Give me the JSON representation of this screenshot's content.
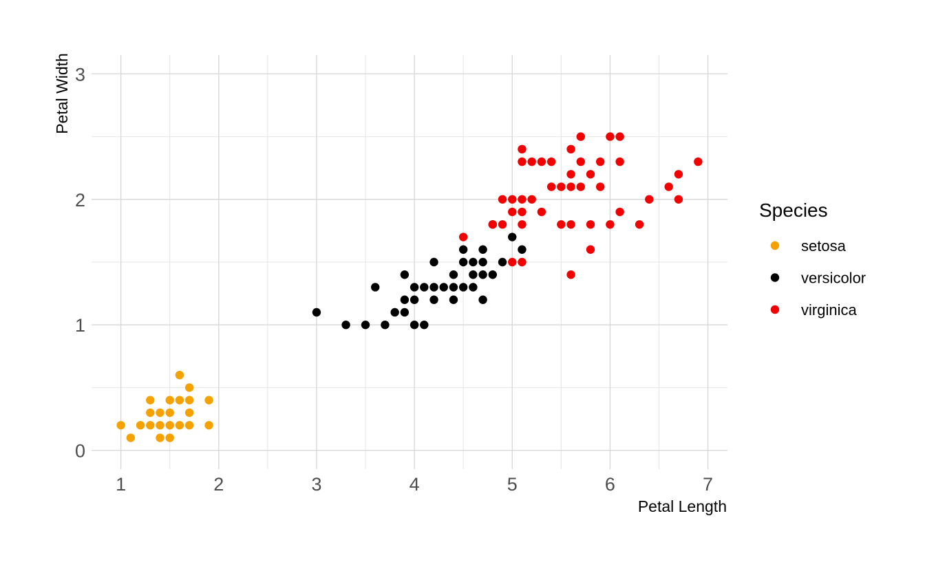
{
  "chart_data": {
    "type": "scatter",
    "xlabel": "Petal Length",
    "ylabel": "Petal Width",
    "xlim": [
      0.7,
      7.2
    ],
    "ylim": [
      -0.15,
      3.15
    ],
    "x_ticks": [
      "1",
      "2",
      "3",
      "4",
      "5",
      "6",
      "7"
    ],
    "y_ticks": [
      "0",
      "1",
      "2",
      "3"
    ],
    "grid": true,
    "legend_title": "Species",
    "legend_position": "right",
    "series": [
      {
        "name": "setosa",
        "color": "#F5A100",
        "points": [
          [
            1.0,
            0.2
          ],
          [
            1.1,
            0.1
          ],
          [
            1.2,
            0.2
          ],
          [
            1.3,
            0.2
          ],
          [
            1.3,
            0.3
          ],
          [
            1.3,
            0.4
          ],
          [
            1.4,
            0.1
          ],
          [
            1.4,
            0.2
          ],
          [
            1.4,
            0.3
          ],
          [
            1.5,
            0.1
          ],
          [
            1.5,
            0.2
          ],
          [
            1.5,
            0.3
          ],
          [
            1.5,
            0.4
          ],
          [
            1.6,
            0.2
          ],
          [
            1.6,
            0.4
          ],
          [
            1.6,
            0.6
          ],
          [
            1.7,
            0.2
          ],
          [
            1.7,
            0.3
          ],
          [
            1.7,
            0.4
          ],
          [
            1.7,
            0.5
          ],
          [
            1.9,
            0.2
          ],
          [
            1.9,
            0.4
          ]
        ]
      },
      {
        "name": "versicolor",
        "color": "#000000",
        "points": [
          [
            3.0,
            1.1
          ],
          [
            3.3,
            1.0
          ],
          [
            3.5,
            1.0
          ],
          [
            3.6,
            1.3
          ],
          [
            3.7,
            1.0
          ],
          [
            3.8,
            1.1
          ],
          [
            3.9,
            1.1
          ],
          [
            3.9,
            1.2
          ],
          [
            3.9,
            1.4
          ],
          [
            4.0,
            1.0
          ],
          [
            4.0,
            1.2
          ],
          [
            4.0,
            1.3
          ],
          [
            4.1,
            1.0
          ],
          [
            4.1,
            1.3
          ],
          [
            4.2,
            1.2
          ],
          [
            4.2,
            1.3
          ],
          [
            4.2,
            1.5
          ],
          [
            4.3,
            1.3
          ],
          [
            4.4,
            1.2
          ],
          [
            4.4,
            1.3
          ],
          [
            4.4,
            1.4
          ],
          [
            4.5,
            1.3
          ],
          [
            4.5,
            1.5
          ],
          [
            4.5,
            1.6
          ],
          [
            4.6,
            1.3
          ],
          [
            4.6,
            1.4
          ],
          [
            4.6,
            1.5
          ],
          [
            4.7,
            1.2
          ],
          [
            4.7,
            1.4
          ],
          [
            4.7,
            1.5
          ],
          [
            4.7,
            1.6
          ],
          [
            4.8,
            1.4
          ],
          [
            4.8,
            1.8
          ],
          [
            4.9,
            1.5
          ],
          [
            5.0,
            1.7
          ],
          [
            5.1,
            1.6
          ]
        ]
      },
      {
        "name": "virginica",
        "color": "#F20000",
        "points": [
          [
            4.5,
            1.7
          ],
          [
            4.8,
            1.8
          ],
          [
            4.9,
            1.8
          ],
          [
            4.9,
            2.0
          ],
          [
            5.0,
            1.5
          ],
          [
            5.0,
            1.9
          ],
          [
            5.0,
            2.0
          ],
          [
            5.1,
            1.5
          ],
          [
            5.1,
            1.8
          ],
          [
            5.1,
            1.9
          ],
          [
            5.1,
            2.0
          ],
          [
            5.1,
            2.3
          ],
          [
            5.1,
            2.4
          ],
          [
            5.2,
            2.0
          ],
          [
            5.2,
            2.3
          ],
          [
            5.3,
            1.9
          ],
          [
            5.3,
            2.3
          ],
          [
            5.4,
            2.1
          ],
          [
            5.4,
            2.3
          ],
          [
            5.5,
            1.8
          ],
          [
            5.5,
            2.1
          ],
          [
            5.6,
            1.4
          ],
          [
            5.6,
            1.8
          ],
          [
            5.6,
            2.1
          ],
          [
            5.6,
            2.2
          ],
          [
            5.6,
            2.4
          ],
          [
            5.7,
            2.1
          ],
          [
            5.7,
            2.3
          ],
          [
            5.7,
            2.5
          ],
          [
            5.8,
            1.6
          ],
          [
            5.8,
            1.8
          ],
          [
            5.8,
            2.2
          ],
          [
            5.9,
            2.1
          ],
          [
            5.9,
            2.3
          ],
          [
            6.0,
            1.8
          ],
          [
            6.0,
            2.5
          ],
          [
            6.1,
            1.9
          ],
          [
            6.1,
            2.3
          ],
          [
            6.1,
            2.5
          ],
          [
            6.3,
            1.8
          ],
          [
            6.4,
            2.0
          ],
          [
            6.6,
            2.1
          ],
          [
            6.7,
            2.0
          ],
          [
            6.7,
            2.2
          ],
          [
            6.9,
            2.3
          ]
        ]
      }
    ]
  }
}
